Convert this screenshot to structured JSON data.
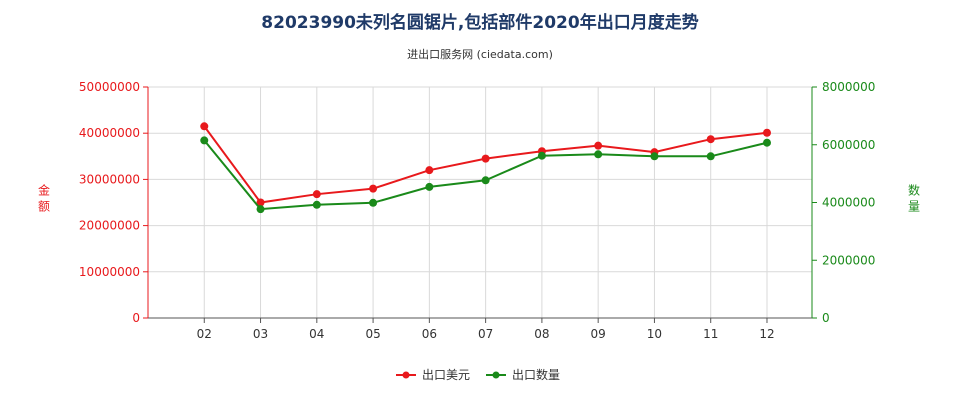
{
  "chart_data": {
    "type": "line",
    "title": "82023990未列名圆锯片,包括部件2020年出口月度走势",
    "subtitle": "进出口服务网 (ciedata.com)",
    "categories": [
      "02",
      "03",
      "04",
      "05",
      "06",
      "07",
      "08",
      "09",
      "10",
      "11",
      "12"
    ],
    "series": [
      {
        "name": "出口美元",
        "axis": "left",
        "color": "#e8191c",
        "values": [
          41500000,
          25000000,
          26800000,
          28000000,
          32000000,
          34500000,
          36100000,
          37300000,
          35900000,
          38700000,
          40100000
        ]
      },
      {
        "name": "出口数量",
        "axis": "right",
        "color": "#1a8a1a",
        "values": [
          6150000,
          3770000,
          3920000,
          3990000,
          4540000,
          4770000,
          5620000,
          5670000,
          5600000,
          5600000,
          6070000
        ]
      }
    ],
    "y_left": {
      "label": "金额",
      "color": "#e8191c",
      "range": [
        0,
        50000000
      ],
      "ticks": [
        "0",
        "10000000",
        "20000000",
        "30000000",
        "40000000",
        "50000000"
      ]
    },
    "y_right": {
      "label": "数量",
      "color": "#1a8a1a",
      "range": [
        0,
        8000000
      ],
      "ticks": [
        "0",
        "2000000",
        "4000000",
        "6000000",
        "8000000"
      ]
    },
    "grid": true,
    "legend_position": "bottom"
  }
}
